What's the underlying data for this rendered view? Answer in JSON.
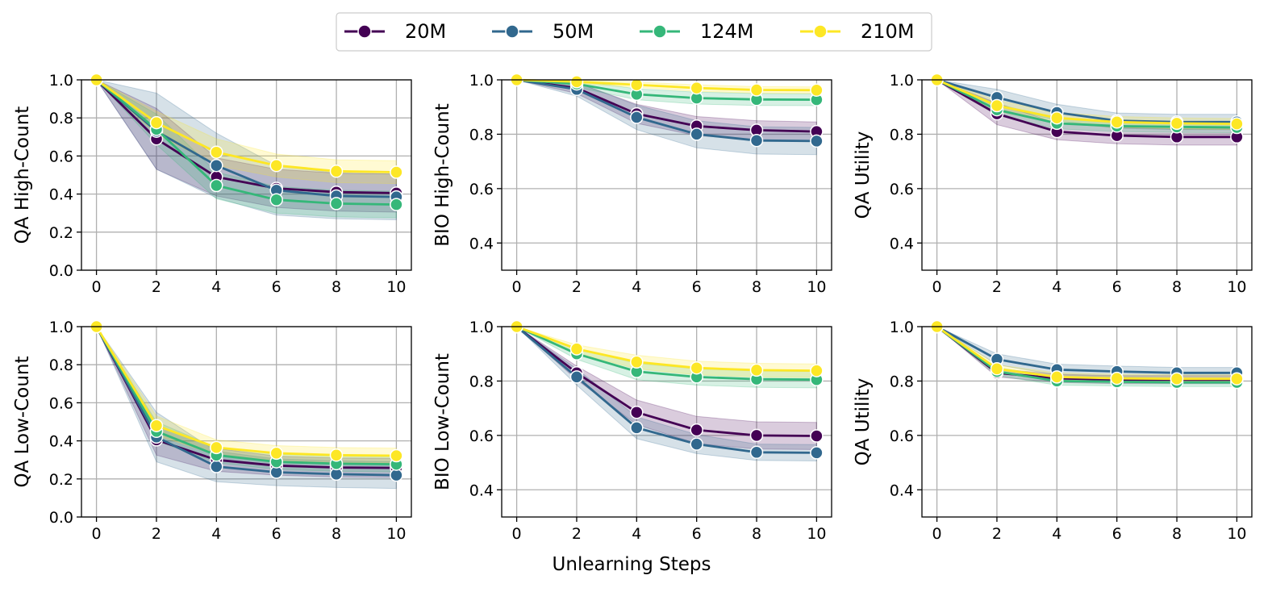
{
  "xlabel": "Unlearning Steps",
  "legend": [
    {
      "name": "20M",
      "color": "#440154"
    },
    {
      "name": "50M",
      "color": "#31688e"
    },
    {
      "name": "124M",
      "color": "#35b779"
    },
    {
      "name": "210M",
      "color": "#fde725"
    }
  ],
  "chart_data": [
    {
      "type": "line",
      "ylabel": "QA High-Count",
      "x": [
        0,
        2,
        4,
        6,
        8,
        10
      ],
      "ylim": [
        0,
        1.0
      ],
      "yticks": [
        "0.0",
        "0.2",
        "0.4",
        "0.6",
        "0.8",
        "1.0"
      ],
      "xticks": [
        "0",
        "2",
        "4",
        "6",
        "8",
        "10"
      ],
      "series": [
        {
          "name": "20M",
          "values": [
            1.0,
            0.69,
            0.49,
            0.43,
            0.41,
            0.405
          ],
          "band": [
            0.16,
            0.1,
            0.1,
            0.1,
            0.1
          ]
        },
        {
          "name": "50M",
          "values": [
            1.0,
            0.73,
            0.55,
            0.42,
            0.39,
            0.385
          ],
          "band": [
            0.2,
            0.17,
            0.13,
            0.12,
            0.12
          ]
        },
        {
          "name": "124M",
          "values": [
            1.0,
            0.74,
            0.445,
            0.37,
            0.35,
            0.345
          ],
          "band": [
            0.08,
            0.07,
            0.07,
            0.07,
            0.07
          ]
        },
        {
          "name": "210M",
          "values": [
            1.0,
            0.775,
            0.62,
            0.55,
            0.52,
            0.515
          ],
          "band": [
            0.06,
            0.07,
            0.06,
            0.06,
            0.06
          ]
        }
      ]
    },
    {
      "type": "line",
      "ylabel": "BIO High-Count",
      "x": [
        0,
        2,
        4,
        6,
        8,
        10
      ],
      "ylim": [
        0.3,
        1.0
      ],
      "yticks": [
        "0.4",
        "0.6",
        "0.8",
        "1.0"
      ],
      "xticks": [
        "0",
        "2",
        "4",
        "6",
        "8",
        "10"
      ],
      "series": [
        {
          "name": "20M",
          "values": [
            1.0,
            0.97,
            0.875,
            0.83,
            0.815,
            0.81
          ],
          "band": [
            0.02,
            0.035,
            0.035,
            0.035,
            0.035
          ]
        },
        {
          "name": "50M",
          "values": [
            1.0,
            0.965,
            0.862,
            0.8,
            0.777,
            0.775
          ],
          "band": [
            0.025,
            0.045,
            0.05,
            0.05,
            0.05
          ]
        },
        {
          "name": "124M",
          "values": [
            1.0,
            0.985,
            0.947,
            0.933,
            0.928,
            0.927
          ],
          "band": [
            0.012,
            0.02,
            0.022,
            0.022,
            0.022
          ]
        },
        {
          "name": "210M",
          "values": [
            1.0,
            0.993,
            0.982,
            0.97,
            0.963,
            0.962
          ],
          "band": [
            0.006,
            0.01,
            0.012,
            0.012,
            0.012
          ]
        }
      ]
    },
    {
      "type": "line",
      "ylabel": "QA Utility",
      "x": [
        0,
        2,
        4,
        6,
        8,
        10
      ],
      "ylim": [
        0.3,
        1.0
      ],
      "yticks": [
        "0.4",
        "0.6",
        "0.8",
        "1.0"
      ],
      "xticks": [
        "0",
        "2",
        "4",
        "6",
        "8",
        "10"
      ],
      "series": [
        {
          "name": "20M",
          "values": [
            1.0,
            0.875,
            0.81,
            0.795,
            0.79,
            0.79
          ],
          "band": [
            0.04,
            0.03,
            0.03,
            0.03,
            0.03
          ]
        },
        {
          "name": "50M",
          "values": [
            1.0,
            0.935,
            0.88,
            0.85,
            0.845,
            0.845
          ],
          "band": [
            0.03,
            0.03,
            0.028,
            0.028,
            0.028
          ]
        },
        {
          "name": "124M",
          "values": [
            1.0,
            0.89,
            0.84,
            0.83,
            0.827,
            0.825
          ],
          "band": [
            0.02,
            0.02,
            0.02,
            0.02,
            0.02
          ]
        },
        {
          "name": "210M",
          "values": [
            1.0,
            0.905,
            0.86,
            0.845,
            0.84,
            0.838
          ],
          "band": [
            0.02,
            0.02,
            0.02,
            0.02,
            0.02
          ]
        }
      ]
    },
    {
      "type": "line",
      "ylabel": "QA Low-Count",
      "x": [
        0,
        2,
        4,
        6,
        8,
        10
      ],
      "ylim": [
        0,
        1.0
      ],
      "yticks": [
        "0.0",
        "0.2",
        "0.4",
        "0.6",
        "0.8",
        "1.0"
      ],
      "xticks": [
        "0",
        "2",
        "4",
        "6",
        "8",
        "10"
      ],
      "series": [
        {
          "name": "20M",
          "values": [
            1.0,
            0.405,
            0.3,
            0.27,
            0.26,
            0.258
          ],
          "band": [
            0.08,
            0.06,
            0.05,
            0.05,
            0.05
          ]
        },
        {
          "name": "50M",
          "values": [
            1.0,
            0.42,
            0.265,
            0.235,
            0.225,
            0.22
          ],
          "band": [
            0.13,
            0.08,
            0.07,
            0.07,
            0.07
          ]
        },
        {
          "name": "124M",
          "values": [
            1.0,
            0.45,
            0.325,
            0.29,
            0.28,
            0.277
          ],
          "band": [
            0.05,
            0.04,
            0.04,
            0.04,
            0.04
          ]
        },
        {
          "name": "210M",
          "values": [
            1.0,
            0.48,
            0.365,
            0.335,
            0.325,
            0.322
          ],
          "band": [
            0.05,
            0.04,
            0.04,
            0.04,
            0.04
          ]
        }
      ]
    },
    {
      "type": "line",
      "ylabel": "BIO Low-Count",
      "x": [
        0,
        2,
        4,
        6,
        8,
        10
      ],
      "ylim": [
        0.3,
        1.0
      ],
      "yticks": [
        "0.4",
        "0.6",
        "0.8",
        "1.0"
      ],
      "xticks": [
        "0",
        "2",
        "4",
        "6",
        "8",
        "10"
      ],
      "series": [
        {
          "name": "20M",
          "values": [
            1.0,
            0.83,
            0.685,
            0.62,
            0.6,
            0.598
          ],
          "band": [
            0.025,
            0.045,
            0.05,
            0.05,
            0.05
          ]
        },
        {
          "name": "50M",
          "values": [
            1.0,
            0.815,
            0.628,
            0.568,
            0.538,
            0.536
          ],
          "band": [
            0.03,
            0.04,
            0.035,
            0.03,
            0.03
          ]
        },
        {
          "name": "124M",
          "values": [
            1.0,
            0.9,
            0.835,
            0.815,
            0.807,
            0.805
          ],
          "band": [
            0.02,
            0.03,
            0.03,
            0.03,
            0.03
          ]
        },
        {
          "name": "210M",
          "values": [
            1.0,
            0.918,
            0.87,
            0.848,
            0.84,
            0.838
          ],
          "band": [
            0.015,
            0.025,
            0.025,
            0.025,
            0.025
          ]
        }
      ]
    },
    {
      "type": "line",
      "ylabel": "QA Utility",
      "x": [
        0,
        2,
        4,
        6,
        8,
        10
      ],
      "ylim": [
        0.3,
        1.0
      ],
      "yticks": [
        "0.4",
        "0.6",
        "0.8",
        "1.0"
      ],
      "xticks": [
        "0",
        "2",
        "4",
        "6",
        "8",
        "10"
      ],
      "series": [
        {
          "name": "20M",
          "values": [
            1.0,
            0.83,
            0.81,
            0.805,
            0.805,
            0.805
          ],
          "band": [
            0.015,
            0.015,
            0.015,
            0.015,
            0.015
          ]
        },
        {
          "name": "50M",
          "values": [
            1.0,
            0.88,
            0.842,
            0.835,
            0.83,
            0.83
          ],
          "band": [
            0.02,
            0.02,
            0.02,
            0.02,
            0.02
          ]
        },
        {
          "name": "124M",
          "values": [
            1.0,
            0.835,
            0.8,
            0.797,
            0.795,
            0.795
          ],
          "band": [
            0.015,
            0.015,
            0.015,
            0.015,
            0.015
          ]
        },
        {
          "name": "210M",
          "values": [
            1.0,
            0.845,
            0.815,
            0.81,
            0.808,
            0.808
          ],
          "band": [
            0.015,
            0.015,
            0.015,
            0.015,
            0.015
          ]
        }
      ]
    }
  ]
}
